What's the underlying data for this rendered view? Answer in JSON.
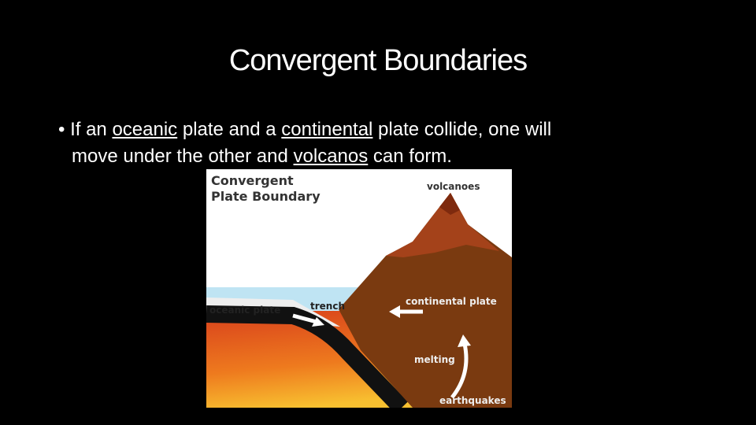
{
  "title": "Convergent Boundaries",
  "bullet": {
    "lines": [
      [
        {
          "text": "If an ",
          "underline": false
        },
        {
          "text": "oceanic",
          "underline": true
        },
        {
          "text": " plate and a ",
          "underline": false
        },
        {
          "text": "continental",
          "underline": true
        },
        {
          "text": " plate collide, one will",
          "underline": false
        }
      ],
      [
        {
          "text": "move under the other and ",
          "underline": false
        },
        {
          "text": "volcanos",
          "underline": true
        },
        {
          "text": " can form.",
          "underline": false
        }
      ]
    ]
  },
  "diagram": {
    "heading": [
      "Convergent",
      "Plate Boundary"
    ],
    "labels": {
      "volcanoes": "volcanoes",
      "continental_plate": "continental plate",
      "trench": "trench",
      "oceanic_plate": "oceanic plate",
      "melting": "melting",
      "earthquakes": "earthquakes"
    }
  }
}
